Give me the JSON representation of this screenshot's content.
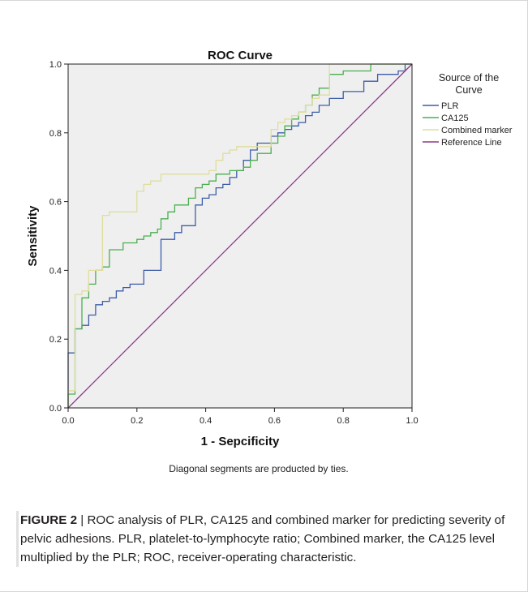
{
  "chart_data": {
    "type": "line",
    "title": "ROC Curve",
    "xlabel": "1 - Sepcificity",
    "ylabel": "Sensitivity",
    "xlim": [
      0,
      1
    ],
    "ylim": [
      0,
      1
    ],
    "xticks": [
      "0.0",
      "0.2",
      "0.4",
      "0.6",
      "0.8",
      "1.0"
    ],
    "yticks": [
      "0.0",
      "0.2",
      "0.4",
      "0.6",
      "0.8",
      "1.0"
    ],
    "grid": false,
    "legend_title": "Source of the Curve",
    "legend_position": "right",
    "footnote": "Diagonal segments are producted by ties.",
    "series": [
      {
        "name": "PLR",
        "color": "#3d5ea8",
        "points": [
          [
            0,
            0
          ],
          [
            0,
            0.16
          ],
          [
            0.02,
            0.16
          ],
          [
            0.02,
            0.23
          ],
          [
            0.04,
            0.23
          ],
          [
            0.04,
            0.24
          ],
          [
            0.06,
            0.24
          ],
          [
            0.06,
            0.27
          ],
          [
            0.08,
            0.27
          ],
          [
            0.08,
            0.3
          ],
          [
            0.1,
            0.3
          ],
          [
            0.1,
            0.31
          ],
          [
            0.12,
            0.31
          ],
          [
            0.12,
            0.32
          ],
          [
            0.14,
            0.32
          ],
          [
            0.14,
            0.34
          ],
          [
            0.16,
            0.34
          ],
          [
            0.16,
            0.35
          ],
          [
            0.18,
            0.35
          ],
          [
            0.18,
            0.36
          ],
          [
            0.22,
            0.36
          ],
          [
            0.22,
            0.4
          ],
          [
            0.27,
            0.4
          ],
          [
            0.27,
            0.49
          ],
          [
            0.31,
            0.49
          ],
          [
            0.31,
            0.51
          ],
          [
            0.33,
            0.51
          ],
          [
            0.33,
            0.53
          ],
          [
            0.37,
            0.53
          ],
          [
            0.37,
            0.59
          ],
          [
            0.39,
            0.59
          ],
          [
            0.39,
            0.61
          ],
          [
            0.41,
            0.61
          ],
          [
            0.41,
            0.62
          ],
          [
            0.43,
            0.62
          ],
          [
            0.43,
            0.64
          ],
          [
            0.45,
            0.64
          ],
          [
            0.45,
            0.65
          ],
          [
            0.47,
            0.65
          ],
          [
            0.47,
            0.67
          ],
          [
            0.49,
            0.67
          ],
          [
            0.49,
            0.69
          ],
          [
            0.51,
            0.69
          ],
          [
            0.51,
            0.72
          ],
          [
            0.53,
            0.72
          ],
          [
            0.53,
            0.75
          ],
          [
            0.55,
            0.75
          ],
          [
            0.55,
            0.77
          ],
          [
            0.59,
            0.77
          ],
          [
            0.59,
            0.79
          ],
          [
            0.61,
            0.79
          ],
          [
            0.61,
            0.8
          ],
          [
            0.63,
            0.8
          ],
          [
            0.63,
            0.81
          ],
          [
            0.65,
            0.81
          ],
          [
            0.65,
            0.82
          ],
          [
            0.67,
            0.82
          ],
          [
            0.67,
            0.83
          ],
          [
            0.69,
            0.83
          ],
          [
            0.69,
            0.85
          ],
          [
            0.71,
            0.85
          ],
          [
            0.71,
            0.86
          ],
          [
            0.73,
            0.86
          ],
          [
            0.73,
            0.88
          ],
          [
            0.76,
            0.88
          ],
          [
            0.76,
            0.9
          ],
          [
            0.8,
            0.9
          ],
          [
            0.8,
            0.92
          ],
          [
            0.86,
            0.92
          ],
          [
            0.86,
            0.95
          ],
          [
            0.9,
            0.95
          ],
          [
            0.9,
            0.97
          ],
          [
            0.96,
            0.97
          ],
          [
            0.96,
            0.98
          ],
          [
            0.98,
            0.98
          ],
          [
            0.98,
            1
          ],
          [
            1,
            1
          ]
        ]
      },
      {
        "name": "CA125",
        "color": "#4caf50",
        "points": [
          [
            0,
            0
          ],
          [
            0,
            0.04
          ],
          [
            0.02,
            0.04
          ],
          [
            0.02,
            0.23
          ],
          [
            0.04,
            0.23
          ],
          [
            0.04,
            0.32
          ],
          [
            0.06,
            0.32
          ],
          [
            0.06,
            0.36
          ],
          [
            0.08,
            0.36
          ],
          [
            0.08,
            0.4
          ],
          [
            0.1,
            0.4
          ],
          [
            0.1,
            0.41
          ],
          [
            0.12,
            0.41
          ],
          [
            0.12,
            0.46
          ],
          [
            0.16,
            0.46
          ],
          [
            0.16,
            0.48
          ],
          [
            0.2,
            0.48
          ],
          [
            0.2,
            0.49
          ],
          [
            0.22,
            0.49
          ],
          [
            0.22,
            0.5
          ],
          [
            0.24,
            0.5
          ],
          [
            0.24,
            0.51
          ],
          [
            0.26,
            0.51
          ],
          [
            0.26,
            0.52
          ],
          [
            0.27,
            0.52
          ],
          [
            0.27,
            0.55
          ],
          [
            0.29,
            0.55
          ],
          [
            0.29,
            0.57
          ],
          [
            0.31,
            0.57
          ],
          [
            0.31,
            0.59
          ],
          [
            0.35,
            0.59
          ],
          [
            0.35,
            0.61
          ],
          [
            0.37,
            0.61
          ],
          [
            0.37,
            0.64
          ],
          [
            0.39,
            0.64
          ],
          [
            0.39,
            0.65
          ],
          [
            0.41,
            0.65
          ],
          [
            0.41,
            0.66
          ],
          [
            0.43,
            0.66
          ],
          [
            0.43,
            0.68
          ],
          [
            0.47,
            0.68
          ],
          [
            0.47,
            0.69
          ],
          [
            0.51,
            0.69
          ],
          [
            0.51,
            0.7
          ],
          [
            0.53,
            0.7
          ],
          [
            0.53,
            0.72
          ],
          [
            0.55,
            0.72
          ],
          [
            0.55,
            0.74
          ],
          [
            0.59,
            0.74
          ],
          [
            0.59,
            0.77
          ],
          [
            0.61,
            0.77
          ],
          [
            0.61,
            0.79
          ],
          [
            0.63,
            0.79
          ],
          [
            0.63,
            0.82
          ],
          [
            0.65,
            0.82
          ],
          [
            0.65,
            0.84
          ],
          [
            0.67,
            0.84
          ],
          [
            0.67,
            0.86
          ],
          [
            0.69,
            0.86
          ],
          [
            0.69,
            0.88
          ],
          [
            0.71,
            0.88
          ],
          [
            0.71,
            0.91
          ],
          [
            0.73,
            0.91
          ],
          [
            0.73,
            0.93
          ],
          [
            0.76,
            0.93
          ],
          [
            0.76,
            0.97
          ],
          [
            0.8,
            0.97
          ],
          [
            0.8,
            0.98
          ],
          [
            0.88,
            0.98
          ],
          [
            0.88,
            1
          ],
          [
            1,
            1
          ]
        ]
      },
      {
        "name": "Combined marker",
        "color": "#dede9e",
        "points": [
          [
            0,
            0
          ],
          [
            0,
            0.05
          ],
          [
            0.02,
            0.05
          ],
          [
            0.02,
            0.33
          ],
          [
            0.04,
            0.33
          ],
          [
            0.04,
            0.34
          ],
          [
            0.06,
            0.34
          ],
          [
            0.06,
            0.4
          ],
          [
            0.1,
            0.4
          ],
          [
            0.1,
            0.56
          ],
          [
            0.12,
            0.56
          ],
          [
            0.12,
            0.57
          ],
          [
            0.2,
            0.57
          ],
          [
            0.2,
            0.63
          ],
          [
            0.22,
            0.63
          ],
          [
            0.22,
            0.65
          ],
          [
            0.24,
            0.65
          ],
          [
            0.24,
            0.66
          ],
          [
            0.27,
            0.66
          ],
          [
            0.27,
            0.68
          ],
          [
            0.41,
            0.68
          ],
          [
            0.41,
            0.69
          ],
          [
            0.43,
            0.69
          ],
          [
            0.43,
            0.72
          ],
          [
            0.45,
            0.72
          ],
          [
            0.45,
            0.74
          ],
          [
            0.47,
            0.74
          ],
          [
            0.47,
            0.75
          ],
          [
            0.49,
            0.75
          ],
          [
            0.49,
            0.76
          ],
          [
            0.59,
            0.76
          ],
          [
            0.59,
            0.81
          ],
          [
            0.61,
            0.81
          ],
          [
            0.61,
            0.83
          ],
          [
            0.63,
            0.83
          ],
          [
            0.63,
            0.84
          ],
          [
            0.65,
            0.84
          ],
          [
            0.65,
            0.85
          ],
          [
            0.67,
            0.85
          ],
          [
            0.67,
            0.86
          ],
          [
            0.69,
            0.86
          ],
          [
            0.69,
            0.88
          ],
          [
            0.71,
            0.88
          ],
          [
            0.71,
            0.9
          ],
          [
            0.73,
            0.9
          ],
          [
            0.73,
            0.91
          ],
          [
            0.76,
            0.91
          ],
          [
            0.76,
            1
          ],
          [
            1,
            1
          ]
        ]
      },
      {
        "name": "Reference Line",
        "color": "#8b3a8b",
        "points": [
          [
            0,
            0
          ],
          [
            1,
            1
          ]
        ]
      }
    ]
  },
  "caption": {
    "label": "FIGURE 2",
    "separator": " | ",
    "text": "ROC analysis of PLR, CA125 and combined marker for predicting severity of pelvic adhesions. PLR, platelet-to-lymphocyte ratio; Combined marker, the CA125 level multiplied by the PLR; ROC, receiver-operating characteristic."
  }
}
